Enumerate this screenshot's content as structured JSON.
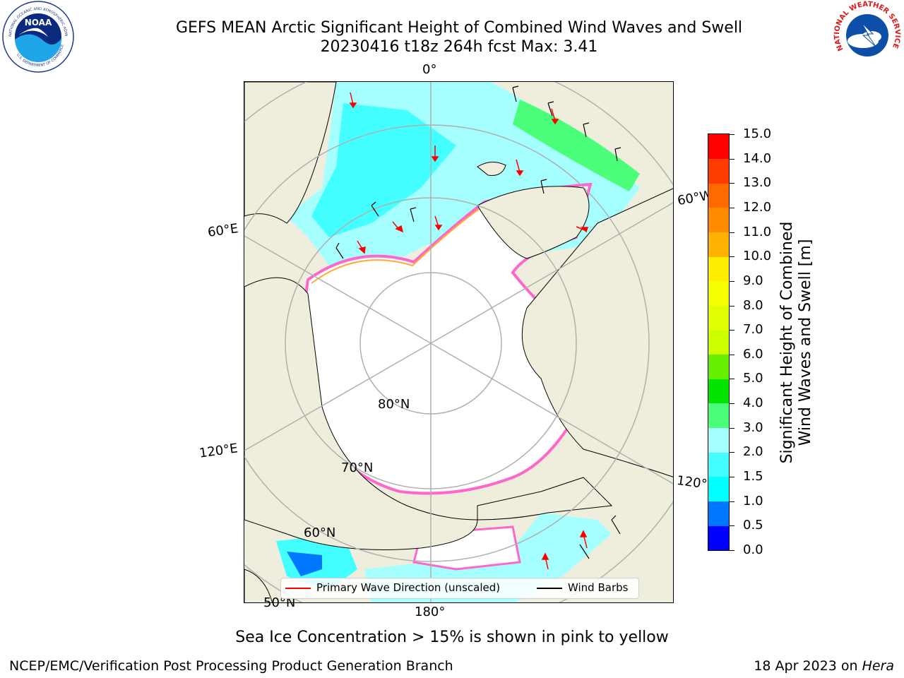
{
  "header": {
    "title_line1": "GEFS MEAN Arctic Significant Height of Combined Wind Waves and Swell",
    "title_line2": "20230416 t18z 264h fcst   Max: 3.41"
  },
  "logos": {
    "noaa_text": "NOAA",
    "noaa_ring_top": "NATIONAL OCEANIC AND ATMOSPHERIC ADMINISTRATION",
    "noaa_ring_bottom": "U.S. DEPARTMENT OF COMMERCE",
    "nws_ring": "NATIONAL WEATHER SERVICE"
  },
  "map": {
    "labels": {
      "lon_0": "0°",
      "lon_60e": "60°E",
      "lon_60w": "60°W",
      "lon_120e": "120°E",
      "lon_120w": "120°W",
      "lon_180": "180°",
      "lat_80": "80°N",
      "lat_70": "70°N",
      "lat_60": "60°N",
      "lat_50": "50°N"
    },
    "colors": {
      "land": "#efeedc",
      "sea_ice": "#ffffff",
      "ice_edge_pink": "#ff66cc",
      "ice_edge_orange": "#ffaa33",
      "wave_arrow": "#ff0000",
      "wind_barb": "#000000",
      "graticule": "#b0b0b0"
    }
  },
  "legend": {
    "wave_direction": "Primary Wave Direction (unscaled)",
    "wind_barbs": "Wind Barbs"
  },
  "colorbar": {
    "title_line1": "Significant Height of Combined",
    "title_line2": "Wind Waves and Swell [m]",
    "bins": [
      {
        "from": 0.0,
        "to": 0.5,
        "color": "#0000ff"
      },
      {
        "from": 0.5,
        "to": 1.0,
        "color": "#0077ff"
      },
      {
        "from": 1.0,
        "to": 1.5,
        "color": "#00ffff"
      },
      {
        "from": 1.5,
        "to": 2.0,
        "color": "#44ffff"
      },
      {
        "from": 2.0,
        "to": 3.0,
        "color": "#a6ffff"
      },
      {
        "from": 3.0,
        "to": 4.0,
        "color": "#4cff7a"
      },
      {
        "from": 4.0,
        "to": 5.0,
        "color": "#00e400"
      },
      {
        "from": 5.0,
        "to": 6.0,
        "color": "#66f000"
      },
      {
        "from": 6.0,
        "to": 7.0,
        "color": "#ccff00"
      },
      {
        "from": 7.0,
        "to": 8.0,
        "color": "#e0ff00"
      },
      {
        "from": 8.0,
        "to": 9.0,
        "color": "#f6ff00"
      },
      {
        "from": 9.0,
        "to": 10.0,
        "color": "#ffee00"
      },
      {
        "from": 10.0,
        "to": 11.0,
        "color": "#ffb300"
      },
      {
        "from": 11.0,
        "to": 12.0,
        "color": "#ff8c00"
      },
      {
        "from": 12.0,
        "to": 13.0,
        "color": "#ff6a00"
      },
      {
        "from": 13.0,
        "to": 14.0,
        "color": "#ff3c00"
      },
      {
        "from": 14.0,
        "to": 15.0,
        "color": "#ff0000"
      }
    ],
    "ticks": [
      "0.0",
      "0.5",
      "1.0",
      "1.5",
      "2.0",
      "3.0",
      "4.0",
      "5.0",
      "6.0",
      "7.0",
      "8.0",
      "9.0",
      "10.0",
      "11.0",
      "12.0",
      "13.0",
      "14.0",
      "15.0"
    ]
  },
  "caption": "Sea Ice Concentration > 15% is shown in pink to yellow",
  "footer": {
    "left": "NCEP/EMC/Verification Post Processing Product Generation Branch",
    "right_date": "18 Apr 2023 on ",
    "right_host": "Hera"
  }
}
